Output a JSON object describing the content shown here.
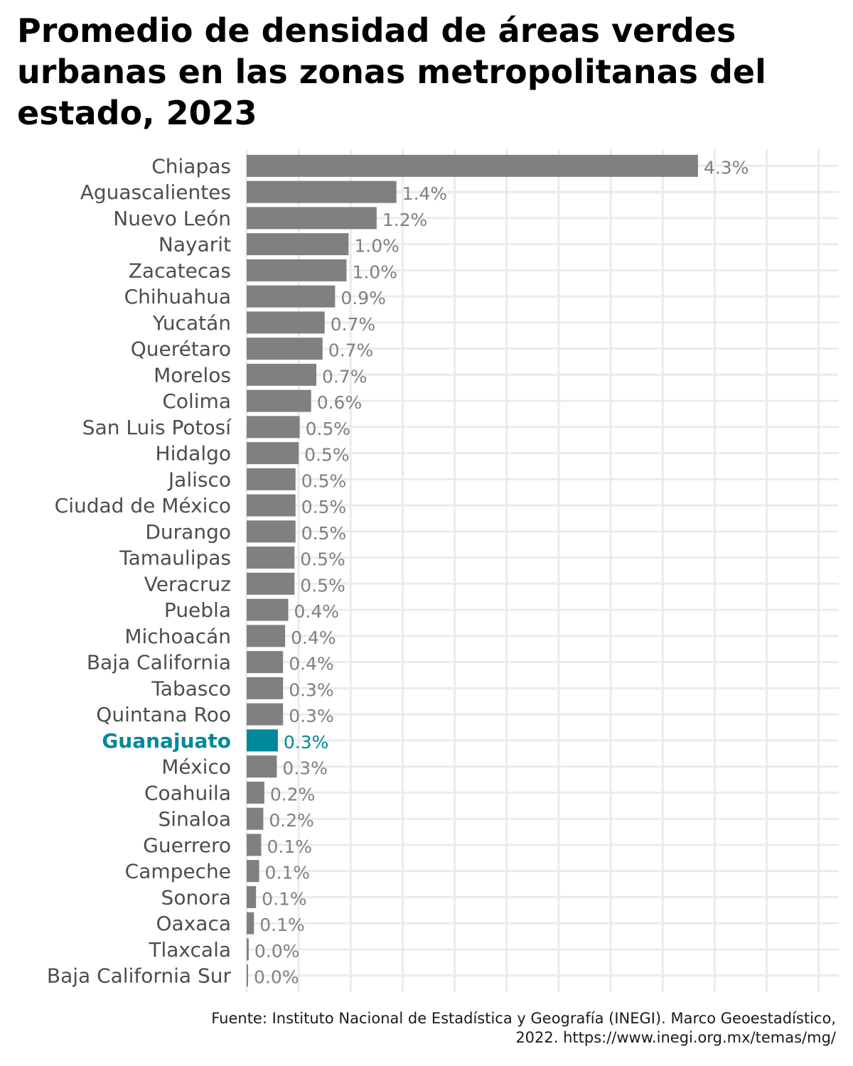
{
  "chart_data": {
    "type": "bar",
    "orientation": "horizontal",
    "title": "Promedio de densidad de áreas verdes urbanas en las zonas metropolitanas del estado, 2023",
    "caption": "Fuente: Instituto Nacional de Estadística y Geografía (INEGI). Marco Geoestadístico, 2022. https://www.inegi.org.mx/temas/mg/",
    "categories": [
      "Chiapas",
      "Aguascalientes",
      "Nuevo León",
      "Nayarit",
      "Zacatecas",
      "Chihuahua",
      "Yucatán",
      "Querétaro",
      "Morelos",
      "Colima",
      "San Luis Potosí",
      "Hidalgo",
      "Jalisco",
      "Ciudad de México",
      "Durango",
      "Tamaulipas",
      "Veracruz",
      "Puebla",
      "Michoacán",
      "Baja California",
      "Tabasco",
      "Quintana Roo",
      "Guanajuato",
      "México",
      "Coahuila",
      "Sinaloa",
      "Guerrero",
      "Campeche",
      "Sonora",
      "Oaxaca",
      "Tlaxcala",
      "Baja California Sur"
    ],
    "values": [
      4.34,
      1.44,
      1.25,
      0.98,
      0.96,
      0.85,
      0.75,
      0.73,
      0.67,
      0.62,
      0.51,
      0.5,
      0.47,
      0.47,
      0.47,
      0.46,
      0.46,
      0.4,
      0.37,
      0.35,
      0.35,
      0.35,
      0.3,
      0.29,
      0.17,
      0.16,
      0.14,
      0.12,
      0.09,
      0.07,
      0.02,
      0.01
    ],
    "value_labels": [
      "4.3%",
      "1.4%",
      "1.2%",
      "1.0%",
      "1.0%",
      "0.9%",
      "0.7%",
      "0.7%",
      "0.7%",
      "0.6%",
      "0.5%",
      "0.5%",
      "0.5%",
      "0.5%",
      "0.5%",
      "0.5%",
      "0.5%",
      "0.4%",
      "0.4%",
      "0.4%",
      "0.3%",
      "0.3%",
      "0.3%",
      "0.3%",
      "0.2%",
      "0.2%",
      "0.1%",
      "0.1%",
      "0.1%",
      "0.1%",
      "0.0%",
      "0.0%"
    ],
    "highlight": "Guanajuato",
    "xlim": [
      0,
      5.5
    ],
    "grid": true,
    "colors": {
      "bar": "#808080",
      "highlight": "#00889A",
      "grid": "#EBEBEB",
      "label": "#4D4D4D",
      "value_label": "#808080"
    }
  }
}
